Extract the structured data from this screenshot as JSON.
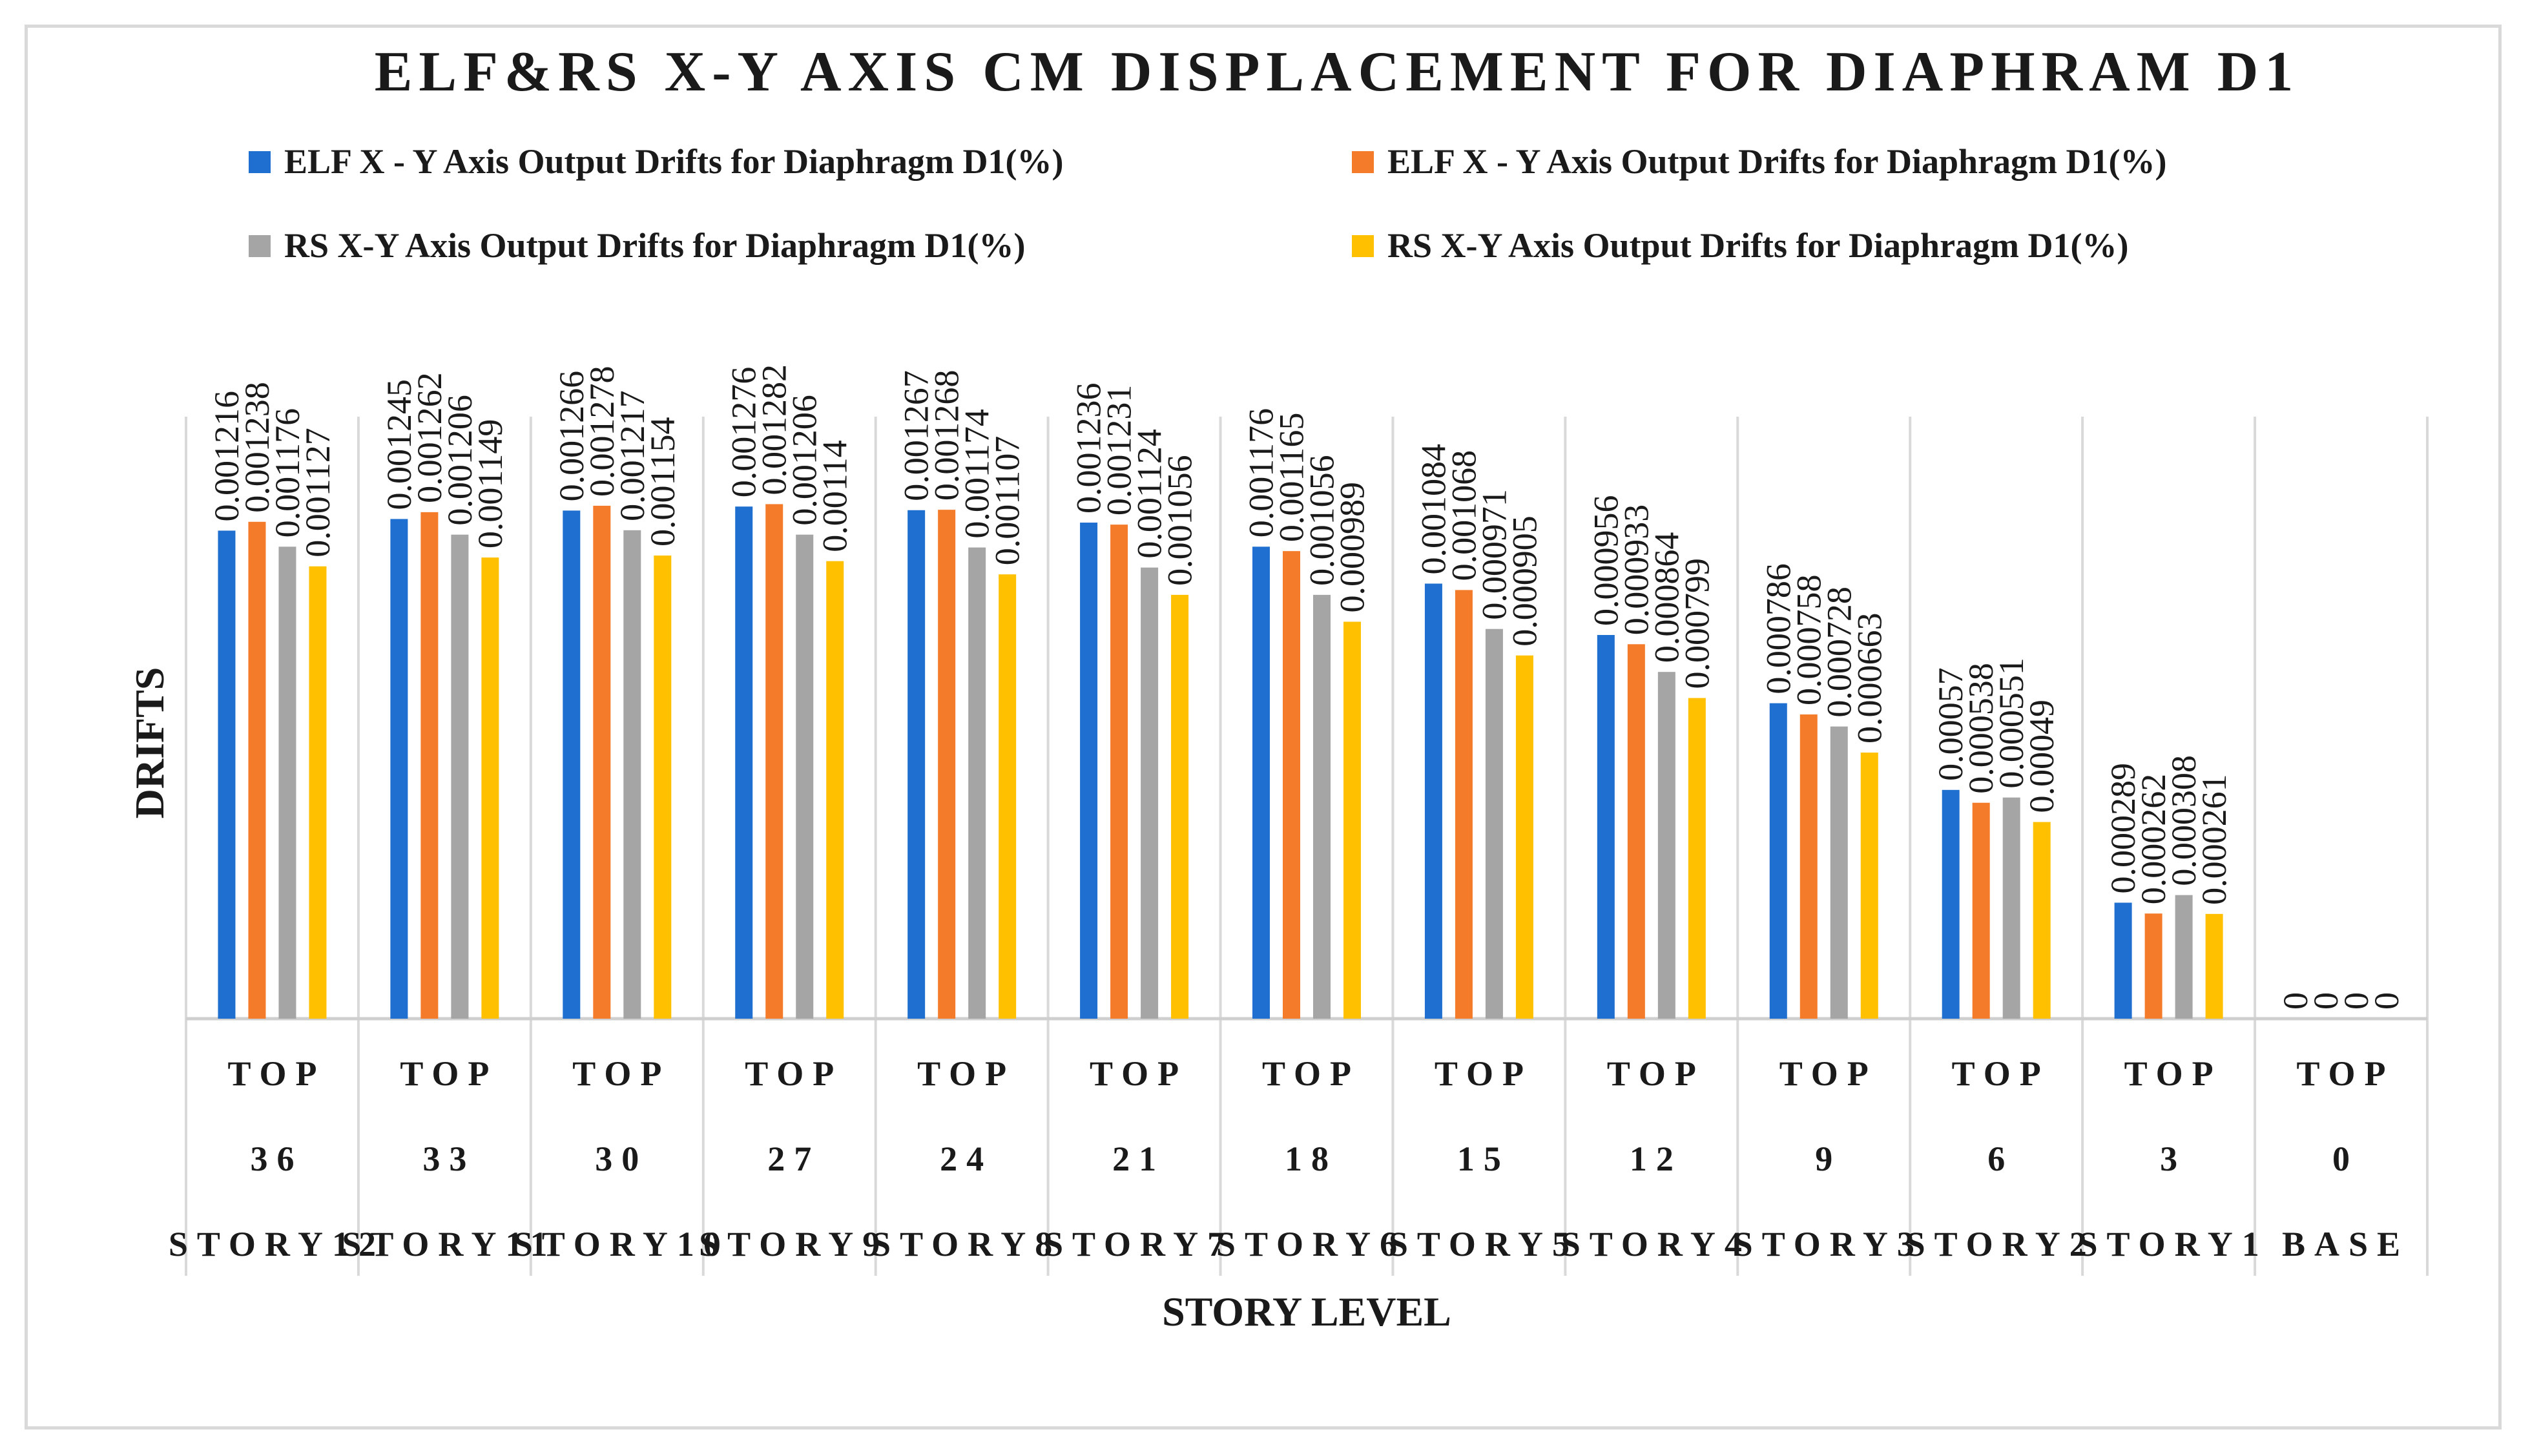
{
  "chart_data": {
    "type": "bar",
    "title": "ELF&RS X-Y AXIS CM DISPLACEMENT FOR DIAPHRAM D1",
    "xlabel": "STORY LEVEL",
    "ylabel": "DRIFTS",
    "ylim": [
      0,
      0.0015
    ],
    "grid": "vertical category separators",
    "legend_position": "top",
    "categories": [
      {
        "line1": "TOP",
        "line2": "36",
        "line3": "STORY12"
      },
      {
        "line1": "TOP",
        "line2": "33",
        "line3": "STORY11"
      },
      {
        "line1": "TOP",
        "line2": "30",
        "line3": "STORY10"
      },
      {
        "line1": "TOP",
        "line2": "27",
        "line3": "STORY9"
      },
      {
        "line1": "TOP",
        "line2": "24",
        "line3": "STORY8"
      },
      {
        "line1": "TOP",
        "line2": "21",
        "line3": "STORY7"
      },
      {
        "line1": "TOP",
        "line2": "18",
        "line3": "STORY6"
      },
      {
        "line1": "TOP",
        "line2": "15",
        "line3": "STORY5"
      },
      {
        "line1": "TOP",
        "line2": "12",
        "line3": "STORY4"
      },
      {
        "line1": "TOP",
        "line2": "9",
        "line3": "STORY3"
      },
      {
        "line1": "TOP",
        "line2": "6",
        "line3": "STORY2"
      },
      {
        "line1": "TOP",
        "line2": "3",
        "line3": "STORY1"
      },
      {
        "line1": "TOP",
        "line2": "0",
        "line3": "BASE"
      }
    ],
    "series": [
      {
        "name": "ELF X - Y Axis Output Drifts for Diaphragm D1(%)",
        "color": "#1f6fd0",
        "values": [
          0.001216,
          0.001245,
          0.001266,
          0.001276,
          0.001267,
          0.001236,
          0.001176,
          0.001084,
          0.000956,
          0.000786,
          0.00057,
          0.000289,
          0
        ],
        "labels": [
          "0.001216",
          "0.001245",
          "0.001266",
          "0.001276",
          "0.001267",
          "0.001236",
          "0.001176",
          "0.001084",
          "0.000956",
          "0.000786",
          "0.00057",
          "0.000289",
          "0"
        ]
      },
      {
        "name": "ELF X - Y Axis Output Drifts for Diaphragm D1(%)",
        "color": "#f47b2a",
        "values": [
          0.001238,
          0.001262,
          0.001278,
          0.001282,
          0.001268,
          0.001231,
          0.001165,
          0.001068,
          0.000933,
          0.000758,
          0.000538,
          0.000262,
          0
        ],
        "labels": [
          "0.001238",
          "0.001262",
          "0.001278",
          "0.001282",
          "0.001268",
          "0.001231",
          "0.001165",
          "0.001068",
          "0.000933",
          "0.000758",
          "0.000538",
          "0.000262",
          "0"
        ]
      },
      {
        "name": "RS X-Y Axis Output Drifts for Diaphragm D1(%)",
        "color": "#a5a5a5",
        "values": [
          0.001176,
          0.001206,
          0.001217,
          0.001206,
          0.001174,
          0.001124,
          0.001056,
          0.000971,
          0.000864,
          0.000728,
          0.000551,
          0.000308,
          0
        ],
        "labels": [
          "0.001176",
          "0.001206",
          "0.001217",
          "0.001206",
          "0.001174",
          "0.001124",
          "0.001056",
          "0.000971",
          "0.000864",
          "0.000728",
          "0.000551",
          "0.000308",
          "0"
        ]
      },
      {
        "name": "RS X-Y Axis Output Drifts for Diaphragm D1(%)",
        "color": "#ffc000",
        "values": [
          0.001127,
          0.001149,
          0.001154,
          0.00114,
          0.001107,
          0.001056,
          0.000989,
          0.000905,
          0.000799,
          0.000663,
          0.00049,
          0.000261,
          0
        ],
        "labels": [
          "0.001127",
          "0.001149",
          "0.001154",
          "0.00114",
          "0.001107",
          "0.001056",
          "0.000989",
          "0.000905",
          "0.000799",
          "0.000663",
          "0.00049",
          "0.000261",
          "0"
        ]
      }
    ]
  }
}
